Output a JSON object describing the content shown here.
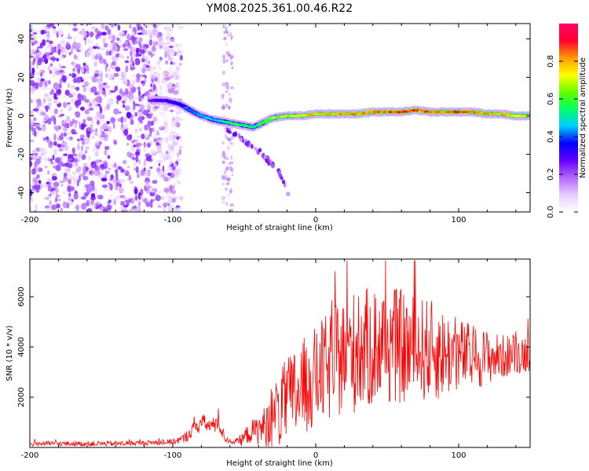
{
  "chart_data": [
    {
      "type": "heatmap",
      "title": "YM08.2025.361.00.46.R22",
      "xlabel": "Height of straight line (km)",
      "ylabel": "Frequency (Hz)",
      "xlim": [
        -200,
        150
      ],
      "ylim": [
        -50,
        48
      ],
      "xticks": [
        -200,
        -100,
        0,
        100
      ],
      "xtick_labels": [
        "-200",
        "-100",
        "0",
        "100"
      ],
      "yticks": [
        -40,
        -20,
        0,
        20,
        40
      ],
      "ytick_labels": [
        "-40",
        "-20",
        "0",
        "20",
        "40"
      ],
      "colorbar": {
        "label": "Normalized spectral amplitude",
        "range": [
          0,
          1
        ],
        "ticks": [
          0,
          0.2,
          0.4,
          0.6,
          0.8
        ],
        "tick_labels": [
          "0.0",
          "0.2",
          "0.4",
          "0.6",
          "0.8"
        ],
        "colormap": [
          "#ffffff",
          "#e6ccff",
          "#b366ff",
          "#6600ff",
          "#0000ff",
          "#00ccff",
          "#00ff66",
          "#66ff00",
          "#ffff00",
          "#ff9900",
          "#ff0033",
          "#ff0066"
        ]
      },
      "ridge": {
        "x": [
          -115,
          -105,
          -95,
          -88,
          -80,
          -72,
          -65,
          -58,
          -50,
          -44,
          -38,
          -30,
          -20,
          -10,
          0,
          10,
          20,
          30,
          40,
          50,
          60,
          70,
          80,
          90,
          100,
          110,
          120,
          130,
          140,
          150
        ],
        "freq": [
          8,
          8,
          6,
          3,
          0,
          -2,
          -3,
          -4,
          -5,
          -6,
          -4,
          -1,
          0,
          0,
          1,
          1,
          1,
          1,
          2,
          2,
          2,
          3,
          2,
          2,
          2,
          2,
          1,
          1,
          0,
          0
        ],
        "amplitude": [
          0.3,
          0.35,
          0.4,
          0.45,
          0.5,
          0.5,
          0.55,
          0.6,
          0.6,
          0.55,
          0.6,
          0.7,
          0.75,
          0.8,
          0.85,
          0.85,
          0.85,
          0.9,
          0.9,
          0.9,
          0.95,
          0.95,
          0.9,
          0.9,
          0.95,
          0.9,
          0.85,
          0.85,
          0.8,
          0.8
        ]
      },
      "branch": {
        "x": [
          -62,
          -55,
          -48,
          -40,
          -30,
          -25,
          -22,
          -18
        ],
        "freq": [
          -8,
          -10,
          -14,
          -18,
          -26,
          -30,
          -36,
          -44
        ]
      },
      "noise_region_x": [
        -200,
        -100
      ],
      "vertical_band_x": [
        -65,
        -58
      ]
    },
    {
      "type": "line",
      "xlabel": "Height of straight line (km)",
      "ylabel": "SNR (10 * v/v)",
      "xlim": [
        -200,
        150
      ],
      "ylim": [
        0,
        7500
      ],
      "xticks": [
        -200,
        -100,
        0,
        100
      ],
      "xtick_labels": [
        "-200",
        "-100",
        "0",
        "100"
      ],
      "yticks": [
        2000,
        4000,
        6000
      ],
      "ytick_labels": [
        "2000",
        "4000",
        "6000"
      ],
      "series": [
        {
          "name": "SNR",
          "color": "#ff0000",
          "x": [
            -200,
            -180,
            -160,
            -140,
            -120,
            -100,
            -92,
            -86,
            -80,
            -76,
            -72,
            -68,
            -64,
            -60,
            -56,
            -52,
            -46,
            -40,
            -34,
            -28,
            -22,
            -16,
            -10,
            -4,
            0,
            4,
            10,
            16,
            22,
            28,
            34,
            40,
            46,
            52,
            60,
            68,
            76,
            84,
            92,
            100,
            110,
            120,
            130,
            140,
            150
          ],
          "mean": [
            150,
            150,
            150,
            150,
            180,
            220,
            350,
            700,
            1000,
            900,
            850,
            1100,
            400,
            250,
            220,
            300,
            600,
            700,
            900,
            1300,
            1700,
            2000,
            2300,
            2600,
            2800,
            3000,
            3200,
            3500,
            3800,
            3800,
            3900,
            4000,
            4100,
            4100,
            4000,
            3900,
            3900,
            3800,
            3700,
            3700,
            3600,
            3600,
            3600,
            3700,
            3800
          ],
          "spread": [
            100,
            100,
            100,
            100,
            100,
            120,
            200,
            300,
            400,
            300,
            300,
            500,
            200,
            100,
            120,
            250,
            450,
            600,
            900,
            1400,
            1700,
            1900,
            2000,
            2000,
            2000,
            2100,
            2200,
            2300,
            2400,
            2500,
            2400,
            2500,
            2500,
            2400,
            2300,
            2200,
            2100,
            2000,
            1700,
            1500,
            1300,
            1100,
            900,
            800,
            800
          ]
        }
      ]
    }
  ]
}
